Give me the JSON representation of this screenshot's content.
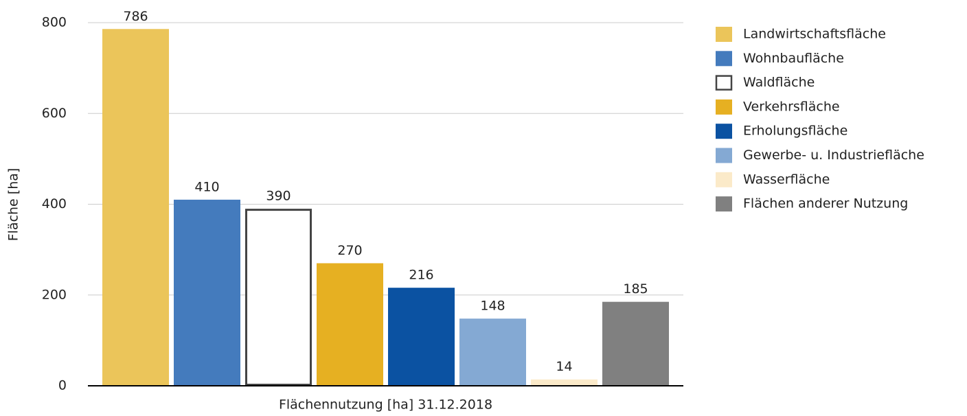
{
  "chart_data": {
    "type": "bar",
    "ylabel": "Fläche [ha]",
    "categories": [
      "Flächennutzung [ha] 31.12.2018"
    ],
    "series": [
      {
        "name": "Landwirtschaftsfläche",
        "color": "#ebc55a",
        "values": [
          786
        ]
      },
      {
        "name": "Wohnbaufläche",
        "color": "#447bbd",
        "values": [
          410
        ]
      },
      {
        "name": "Waldfläche",
        "color": "#ffffff",
        "stroke": "#444444",
        "values": [
          390
        ]
      },
      {
        "name": "Verkehrsfläche",
        "color": "#e6b022",
        "values": [
          270
        ]
      },
      {
        "name": "Erholungsfläche",
        "color": "#0b52a2",
        "values": [
          216
        ]
      },
      {
        "name": "Gewerbe- u. Industriefläche",
        "color": "#84a9d3",
        "values": [
          148
        ]
      },
      {
        "name": "Wasserfläche",
        "color": "#fbeac9",
        "values": [
          14
        ]
      },
      {
        "name": "Flächen anderer Nutzung",
        "color": "#808080",
        "values": [
          185
        ]
      }
    ],
    "ylim": [
      0,
      800
    ],
    "yticks": [
      0,
      200,
      400,
      600,
      800
    ],
    "grid": true,
    "legend": "right"
  }
}
